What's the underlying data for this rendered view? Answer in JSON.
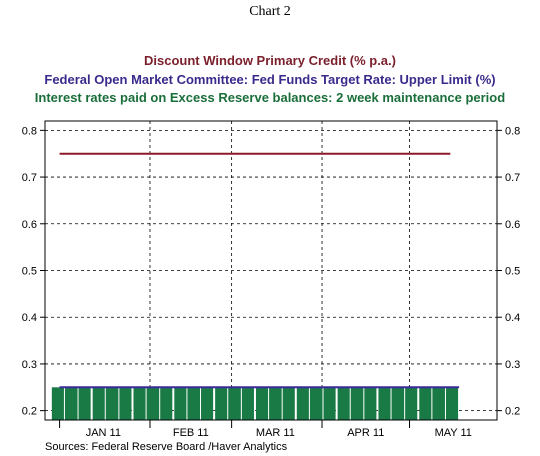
{
  "page_title": "Chart 2",
  "chart_data": {
    "type": "line",
    "title_lines": [
      {
        "text": "Discount Window Primary Credit (% p.a.)",
        "color": "#7a1f2b"
      },
      {
        "text": "Federal Open Market Committee: Fed Funds Target Rate: Upper Limit (%)",
        "color": "#3a2a8c"
      },
      {
        "text": "Interest rates paid on Excess Reserve balances: 2 week maintenance period",
        "color": "#1a6e3a"
      }
    ],
    "x_tick_labels": [
      "JAN 11",
      "FEB 11",
      "MAR 11",
      "APR 11",
      "MAY 11"
    ],
    "y_ticks_left": [
      "0.8",
      "0.7",
      "0.6",
      "0.5",
      "0.4",
      "0.3",
      "0.2"
    ],
    "y_ticks_right": [
      "0.8",
      "0.7",
      "0.6",
      "0.5",
      "0.4",
      "0.3",
      "0.2"
    ],
    "ylim": [
      0.18,
      0.82
    ],
    "xlim": [
      "2010-12-27",
      "2011-05-31"
    ],
    "grid": true,
    "series": [
      {
        "kind": "line",
        "color": "#8b1a2b",
        "x": [
          "2011-01-01",
          "2011-05-15"
        ],
        "values": [
          0.75,
          0.75
        ]
      },
      {
        "kind": "line",
        "color": "#3a2a9c",
        "x": [
          "2011-01-01",
          "2011-05-18"
        ],
        "values": [
          0.25,
          0.25
        ]
      },
      {
        "kind": "bar",
        "color": "#1a7a45",
        "x": [
          "2011-01-05",
          "2011-01-19",
          "2011-02-02",
          "2011-02-16",
          "2011-03-02",
          "2011-03-16",
          "2011-03-30",
          "2011-04-13",
          "2011-04-27",
          "2011-05-11"
        ],
        "values": [
          0.25,
          0.25,
          0.25,
          0.25,
          0.25,
          0.25,
          0.25,
          0.25,
          0.25,
          0.25
        ]
      }
    ],
    "source": "Sources:  Federal Reserve Board /Haver Analytics"
  }
}
